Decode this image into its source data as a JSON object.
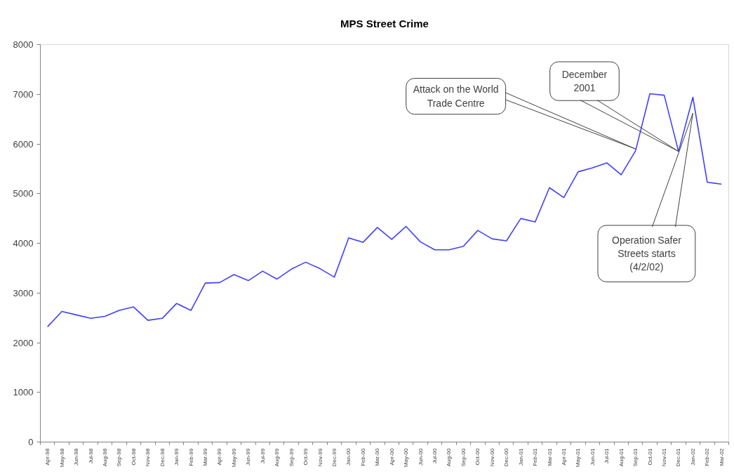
{
  "chart_data": {
    "type": "line",
    "title": "MPS Street Crime",
    "categories": [
      "Apr-98",
      "May-98",
      "Jun-98",
      "Jul-98",
      "Aug-98",
      "Sep-98",
      "Oct-98",
      "Nov-98",
      "Dec-98",
      "Jan-99",
      "Feb-99",
      "Mar-99",
      "Apr-99",
      "May-99",
      "Jun-99",
      "Jul-99",
      "Aug-99",
      "Sep-99",
      "Oct-99",
      "Nov-99",
      "Dec-99",
      "Jan-00",
      "Feb-00",
      "Mar-00",
      "Apr-00",
      "May-00",
      "Jun-00",
      "Jul-00",
      "Aug-00",
      "Sep-00",
      "Oct-00",
      "Nov-00",
      "Dec-00",
      "Jan-01",
      "Feb-01",
      "Mar-01",
      "Apr-01",
      "May-01",
      "Jun-01",
      "Jul-01",
      "Aug-01",
      "Sep-01",
      "Oct-01",
      "Nov-01",
      "Dec-01",
      "Jan-02",
      "Feb-02",
      "Mar-02"
    ],
    "series": [
      {
        "color": "#4040ff",
        "values": [
          2320,
          2630,
          2560,
          2490,
          2530,
          2650,
          2720,
          2450,
          2490,
          2790,
          2650,
          3200,
          3210,
          3370,
          3250,
          3440,
          3280,
          3480,
          3620,
          3490,
          3320,
          4110,
          4020,
          4320,
          4080,
          4340,
          4030,
          3870,
          3870,
          3940,
          4260,
          4090,
          4050,
          4500,
          4430,
          5120,
          4920,
          5440,
          5520,
          5620,
          5380,
          5860,
          7010,
          6980,
          5850,
          6940,
          5230,
          5190
        ]
      }
    ],
    "ylim": [
      0,
      8000
    ],
    "yticks": [
      0,
      1000,
      2000,
      3000,
      4000,
      5000,
      6000,
      7000,
      8000
    ],
    "grid": false,
    "marker": "none",
    "line_style": "solid",
    "annotations": [
      {
        "text": "Attack on the World Trade Centre",
        "x": "Sep-01",
        "y": 5900
      },
      {
        "text": "December 2001",
        "x": "Dec-01",
        "y": 5850
      },
      {
        "text": "Operation Safer Streets starts (4/2/02)",
        "x": "Jan-02",
        "y": 6620
      }
    ]
  }
}
